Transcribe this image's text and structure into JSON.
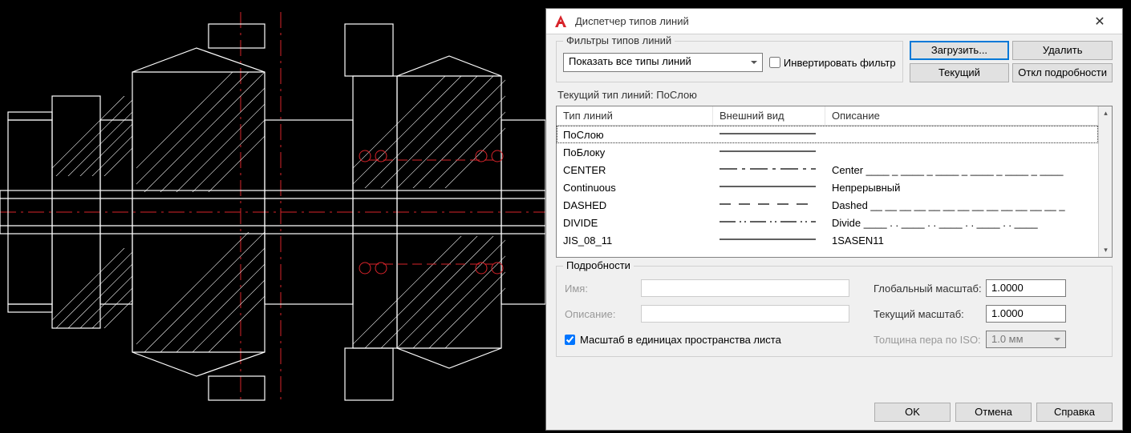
{
  "dialog": {
    "title": "Диспетчер типов линий",
    "icon_color": "#d7232a"
  },
  "filter": {
    "legend": "Фильтры типов линий",
    "select_value": "Показать все типы линий",
    "invert_label": "Инвертировать фильтр",
    "invert_checked": false
  },
  "buttons": {
    "load": "Загрузить...",
    "delete": "Удалить",
    "current": "Текущий",
    "toggle_details": "Откл подробности"
  },
  "current_line": "Текущий тип линий:  ПоСлою",
  "table": {
    "headers": {
      "name": "Тип линий",
      "look": "Внешний вид",
      "desc": "Описание"
    },
    "rows": [
      {
        "name": "ПоСлою",
        "pattern": "solid",
        "desc": "",
        "selected": true
      },
      {
        "name": "ПоБлоку",
        "pattern": "solid",
        "desc": ""
      },
      {
        "name": "CENTER",
        "pattern": "center",
        "desc": "Center ____ _ ____ _ ____ _ ____ _ ____ _ ____"
      },
      {
        "name": "Continuous",
        "pattern": "solid",
        "desc": "Непрерывный"
      },
      {
        "name": "DASHED",
        "pattern": "dashed",
        "desc": "Dashed __ __ __ __ __ __ __ __ __ __ __ __ __ _"
      },
      {
        "name": "DIVIDE",
        "pattern": "divide",
        "desc": "Divide ____ . . ____ . . ____ . . ____ . . ____"
      },
      {
        "name": "JIS_08_11",
        "pattern": "solid",
        "desc": "1SASEN11"
      }
    ]
  },
  "details": {
    "legend": "Подробности",
    "name_label": "Имя:",
    "desc_label": "Описание:",
    "scale_paper_label": "Масштаб в единицах пространства листа",
    "scale_paper_checked": true,
    "global_scale_label": "Глобальный масштаб:",
    "global_scale_value": "1.0000",
    "current_scale_label": "Текущий масштаб:",
    "current_scale_value": "1.0000",
    "iso_pen_label": "Толщина пера по ISO:",
    "iso_pen_value": "1.0 мм"
  },
  "footer": {
    "ok": "OK",
    "cancel": "Отмена",
    "help": "Справка"
  },
  "cad_drawing": {
    "stroke_main": "#ffffff",
    "stroke_center": "#d7232a",
    "background": "#000000"
  }
}
